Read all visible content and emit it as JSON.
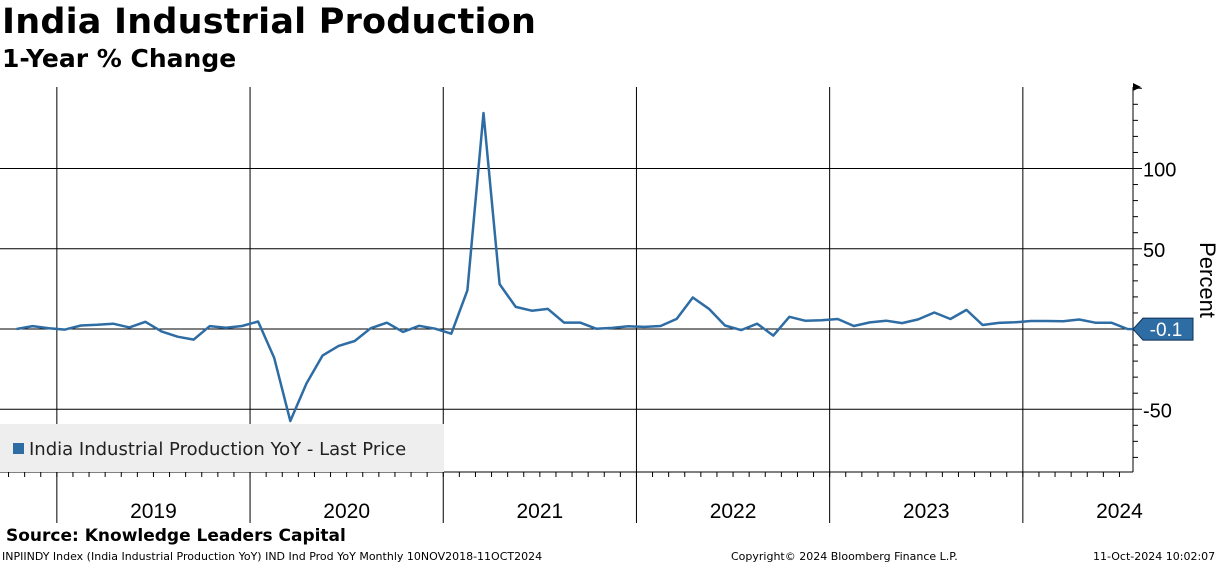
{
  "header": {
    "title": "India Industrial Production",
    "subtitle": "1-Year % Change"
  },
  "footer": {
    "source": "Source: Knowledge Leaders Capital",
    "ticker_info": "INPIINDY Index (India Industrial Production  YoY) IND Ind Prod YoY  Monthly 10NOV2018-11OCT2024",
    "copyright": "Copyright© 2024 Bloomberg Finance L.P.",
    "timestamp": "11-Oct-2024 10:02:07"
  },
  "colors": {
    "line": "#2e6ca4",
    "legend_bg": "#eeeeee",
    "badge_bg": "#2e6ca4",
    "badge_text": "#ffffff"
  },
  "chart_data": {
    "type": "line",
    "title": "India Industrial Production",
    "subtitle": "1-Year % Change",
    "ylabel": "Percent",
    "ylim": [
      -90,
      150
    ],
    "y_ticks": [
      100,
      50,
      -50
    ],
    "y_tick_labels": [
      "100",
      "50",
      "-50"
    ],
    "x_tick_labels": [
      "2019",
      "2020",
      "2021",
      "2022",
      "2023",
      "2024"
    ],
    "grid": true,
    "legend_position": "bottom-left",
    "last_value_label": "-0.1",
    "series": [
      {
        "name": "India Industrial Production YoY - Last Price",
        "x": [
          "2018-10",
          "2018-11",
          "2018-12",
          "2019-01",
          "2019-02",
          "2019-03",
          "2019-04",
          "2019-05",
          "2019-06",
          "2019-07",
          "2019-08",
          "2019-09",
          "2019-10",
          "2019-11",
          "2019-12",
          "2020-01",
          "2020-02",
          "2020-03",
          "2020-04",
          "2020-05",
          "2020-06",
          "2020-07",
          "2020-08",
          "2020-09",
          "2020-10",
          "2020-11",
          "2020-12",
          "2021-01",
          "2021-02",
          "2021-03",
          "2021-04",
          "2021-05",
          "2021-06",
          "2021-07",
          "2021-08",
          "2021-09",
          "2021-10",
          "2021-11",
          "2021-12",
          "2022-01",
          "2022-02",
          "2022-03",
          "2022-04",
          "2022-05",
          "2022-06",
          "2022-07",
          "2022-08",
          "2022-09",
          "2022-10",
          "2022-11",
          "2022-12",
          "2023-01",
          "2023-02",
          "2023-03",
          "2023-04",
          "2023-05",
          "2023-06",
          "2023-07",
          "2023-08",
          "2023-09",
          "2023-10",
          "2023-11",
          "2023-12",
          "2024-01",
          "2024-02",
          "2024-03",
          "2024-04",
          "2024-05",
          "2024-06",
          "2024-07",
          "2024-08"
        ],
        "values": [
          0,
          1.8,
          0.5,
          -0.4,
          2.2,
          2.6,
          3.3,
          1.0,
          4.5,
          -1.5,
          -4.8,
          -6.6,
          1.8,
          0.8,
          1.9,
          4.7,
          -18,
          -57.3,
          -34,
          -16.6,
          -10.5,
          -7.5,
          0.5,
          3.9,
          -1.8,
          2.0,
          0.2,
          -2.9,
          24.1,
          134.6,
          28.0,
          13.8,
          11.4,
          12.5,
          4.0,
          4.0,
          0.2,
          0.7,
          1.7,
          1.3,
          1.9,
          6.3,
          19.6,
          12.6,
          2.2,
          -0.7,
          3.3,
          -4.1,
          7.6,
          5.1,
          5.5,
          6.2,
          1.9,
          4.1,
          5.2,
          3.7,
          6.0,
          10.3,
          6.2,
          11.9,
          2.5,
          3.8,
          4.2,
          5.0,
          5.0,
          4.8,
          5.9,
          3.9,
          3.9,
          0.0,
          -0.1
        ]
      }
    ]
  }
}
